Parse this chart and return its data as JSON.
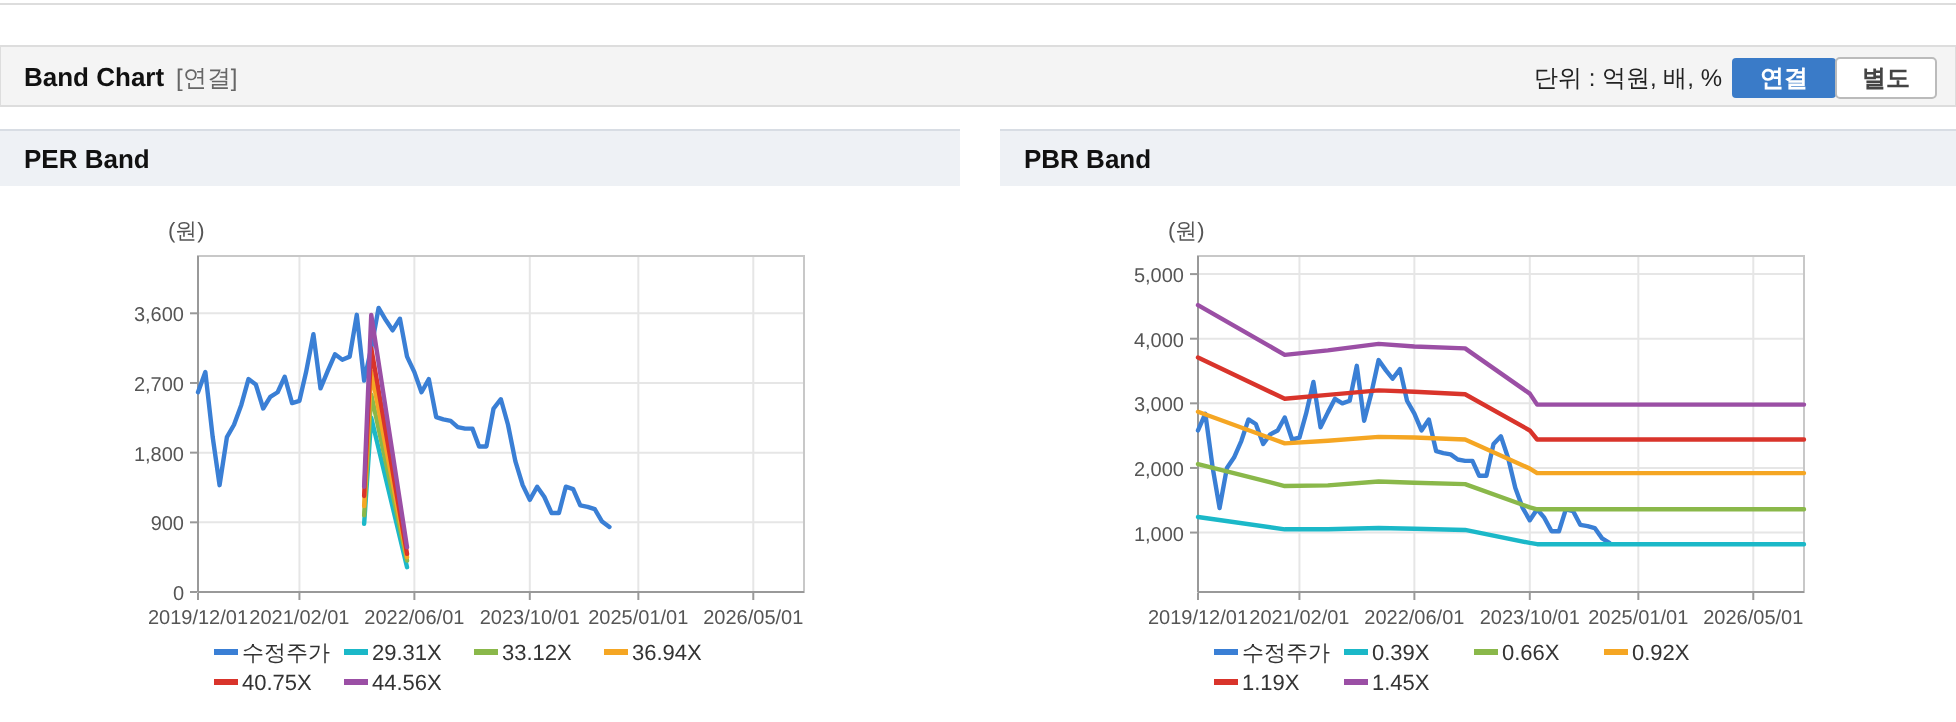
{
  "chart_data": [
    {
      "type": "other",
      "title": "Band Chart",
      "annotations": [
        "[연결]",
        "단위 : 억원, 배, %",
        "연결",
        "별도"
      ]
    },
    {
      "type": "line",
      "title": "PER Band",
      "ylabel": "(원)",
      "xlim": [
        "2019-12-01",
        "2026-12-01"
      ],
      "ylim": [
        0,
        4340
      ],
      "xticks": [
        {
          "value": "2019-12-01",
          "label": "2019/12/01"
        },
        {
          "value": "2021-02-01",
          "label": "2021/02/01"
        },
        {
          "value": "2022-06-01",
          "label": "2022/06/01"
        },
        {
          "value": "2023-10-01",
          "label": "2023/10/01"
        },
        {
          "value": "2025-01-01",
          "label": "2025/01/01"
        },
        {
          "value": "2026-05-01",
          "label": "2026/05/01"
        }
      ],
      "yticks": [
        0,
        900,
        {
          "value": 1800,
          "label": "1,800"
        },
        {
          "value": 2700,
          "label": "2,700"
        },
        {
          "value": 3600,
          "label": "3,600"
        }
      ],
      "grid": true,
      "legend": "bottom",
      "marker": "none",
      "line_style": "solid",
      "series": [
        {
          "name": "수정주가",
          "color": "#3a7fd5",
          "x": [
            "2019-12",
            "2020-01",
            "2020-02",
            "2020-03",
            "2020-04",
            "2020-05",
            "2020-06",
            "2020-07",
            "2020-08",
            "2020-09",
            "2020-10",
            "2020-11",
            "2020-12",
            "2021-01",
            "2021-02",
            "2021-03",
            "2021-04",
            "2021-05",
            "2021-06",
            "2021-07",
            "2021-08",
            "2021-09",
            "2021-10",
            "2021-11",
            "2021-12",
            "2022-01",
            "2022-02",
            "2022-03",
            "2022-04",
            "2022-05",
            "2022-06",
            "2022-07",
            "2022-08",
            "2022-09",
            "2022-10",
            "2022-11",
            "2022-12",
            "2023-01",
            "2023-02",
            "2023-03",
            "2023-04",
            "2023-05",
            "2023-06",
            "2023-07",
            "2023-08",
            "2023-09",
            "2023-10",
            "2023-11",
            "2023-12",
            "2024-01",
            "2024-02",
            "2024-03",
            "2024-04",
            "2024-05",
            "2024-06",
            "2024-07",
            "2024-08",
            "2024-09"
          ],
          "values": [
            2580,
            2840,
            2000,
            1380,
            2000,
            2160,
            2420,
            2750,
            2680,
            2370,
            2520,
            2580,
            2780,
            2440,
            2470,
            2840,
            3330,
            2630,
            2860,
            3070,
            3000,
            3040,
            3580,
            2730,
            3150,
            3670,
            3510,
            3380,
            3530,
            3040,
            2840,
            2580,
            2750,
            2260,
            2230,
            2210,
            2130,
            2110,
            2110,
            1880,
            1880,
            2370,
            2490,
            2160,
            1690,
            1380,
            1190,
            1360,
            1230,
            1020,
            1020,
            1360,
            1330,
            1120,
            1100,
            1070,
            910,
            840
          ]
        },
        {
          "name": "29.31X",
          "color": "#1bb8c8",
          "x": [
            "2021-11",
            "2021-12",
            "2022-05"
          ],
          "values": [
            880,
            2250,
            320
          ]
        },
        {
          "name": "33.12X",
          "color": "#8ab84a",
          "x": [
            "2021-11",
            "2021-12",
            "2022-05"
          ],
          "values": [
            990,
            2550,
            405
          ]
        },
        {
          "name": "36.94X",
          "color": "#f5a623",
          "x": [
            "2021-11",
            "2021-12",
            "2022-05"
          ],
          "values": [
            1110,
            2850,
            449
          ]
        },
        {
          "name": "40.75X",
          "color": "#d9342b",
          "x": [
            "2021-11",
            "2021-12",
            "2022-05"
          ],
          "values": [
            1240,
            3150,
            492
          ]
        },
        {
          "name": "44.56X",
          "color": "#9b4fa5",
          "x": [
            "2021-11",
            "2021-12",
            "2022-05"
          ],
          "values": [
            1360,
            3580,
            578
          ]
        }
      ]
    },
    {
      "type": "line",
      "title": "PBR Band",
      "ylabel": "(원)",
      "xlim": [
        "2019-12-01",
        "2026-12-01"
      ],
      "ylim": [
        80,
        5280
      ],
      "xticks": [
        {
          "value": "2019-12-01",
          "label": "2019/12/01"
        },
        {
          "value": "2021-02-01",
          "label": "2021/02/01"
        },
        {
          "value": "2022-06-01",
          "label": "2022/06/01"
        },
        {
          "value": "2023-10-01",
          "label": "2023/10/01"
        },
        {
          "value": "2025-01-01",
          "label": "2025/01/01"
        },
        {
          "value": "2026-05-01",
          "label": "2026/05/01"
        }
      ],
      "yticks": [
        {
          "value": 1000,
          "label": "1,000"
        },
        {
          "value": 2000,
          "label": "2,000"
        },
        {
          "value": 3000,
          "label": "3,000"
        },
        {
          "value": 4000,
          "label": "4,000"
        },
        {
          "value": 5000,
          "label": "5,000"
        }
      ],
      "grid": true,
      "legend": "bottom",
      "marker": "none",
      "line_style": "solid",
      "series": [
        {
          "name": "수정주가",
          "color": "#3a7fd5",
          "x": [
            "2019-12",
            "2020-01",
            "2020-02",
            "2020-03",
            "2020-04",
            "2020-05",
            "2020-06",
            "2020-07",
            "2020-08",
            "2020-09",
            "2020-10",
            "2020-11",
            "2020-12",
            "2021-01",
            "2021-02",
            "2021-03",
            "2021-04",
            "2021-05",
            "2021-06",
            "2021-07",
            "2021-08",
            "2021-09",
            "2021-10",
            "2021-11",
            "2021-12",
            "2022-01",
            "2022-02",
            "2022-03",
            "2022-04",
            "2022-05",
            "2022-06",
            "2022-07",
            "2022-08",
            "2022-09",
            "2022-10",
            "2022-11",
            "2022-12",
            "2023-01",
            "2023-02",
            "2023-03",
            "2023-04",
            "2023-05",
            "2023-06",
            "2023-07",
            "2023-08",
            "2023-09",
            "2023-10",
            "2023-11",
            "2023-12",
            "2024-01",
            "2024-02",
            "2024-03",
            "2024-04",
            "2024-05",
            "2024-06",
            "2024-07",
            "2024-08",
            "2024-09"
          ],
          "values": [
            2580,
            2840,
            2000,
            1380,
            2000,
            2160,
            2420,
            2750,
            2680,
            2370,
            2520,
            2580,
            2780,
            2440,
            2470,
            2840,
            3330,
            2630,
            2860,
            3070,
            3000,
            3040,
            3580,
            2730,
            3150,
            3670,
            3510,
            3380,
            3530,
            3040,
            2840,
            2580,
            2750,
            2260,
            2230,
            2210,
            2130,
            2110,
            2110,
            1880,
            1880,
            2370,
            2490,
            2160,
            1690,
            1380,
            1190,
            1360,
            1230,
            1020,
            1020,
            1360,
            1330,
            1120,
            1100,
            1070,
            910,
            840
          ]
        },
        {
          "name": "0.39X",
          "color": "#1bb8c8",
          "x": [
            "2019-12",
            "2020-12",
            "2021-06",
            "2022-01",
            "2022-06",
            "2023-01",
            "2023-10",
            "2023-11",
            "2026-12"
          ],
          "values": [
            1240,
            1050,
            1050,
            1070,
            1060,
            1040,
            840,
            820,
            820
          ]
        },
        {
          "name": "0.66X",
          "color": "#8ab84a",
          "x": [
            "2019-12",
            "2020-12",
            "2021-06",
            "2022-01",
            "2022-06",
            "2023-01",
            "2023-10",
            "2023-11",
            "2026-12"
          ],
          "values": [
            2060,
            1720,
            1730,
            1790,
            1770,
            1750,
            1390,
            1360,
            1360
          ]
        },
        {
          "name": "0.92X",
          "color": "#f5a623",
          "x": [
            "2019-12",
            "2020-12",
            "2021-06",
            "2022-01",
            "2022-06",
            "2023-01",
            "2023-10",
            "2023-11",
            "2026-12"
          ],
          "values": [
            2870,
            2380,
            2420,
            2480,
            2470,
            2440,
            1990,
            1920,
            1920
          ]
        },
        {
          "name": "1.19X",
          "color": "#d9342b",
          "x": [
            "2019-12",
            "2020-12",
            "2021-06",
            "2022-01",
            "2022-06",
            "2023-01",
            "2023-10",
            "2023-11",
            "2026-12"
          ],
          "values": [
            3710,
            3070,
            3130,
            3200,
            3180,
            3140,
            2580,
            2440,
            2440
          ]
        },
        {
          "name": "1.45X",
          "color": "#9b4fa5",
          "x": [
            "2019-12",
            "2020-12",
            "2021-06",
            "2022-01",
            "2022-06",
            "2023-01",
            "2023-10",
            "2023-11",
            "2026-12"
          ],
          "values": [
            4520,
            3750,
            3820,
            3920,
            3880,
            3850,
            3150,
            2980,
            2980
          ]
        }
      ]
    }
  ]
}
